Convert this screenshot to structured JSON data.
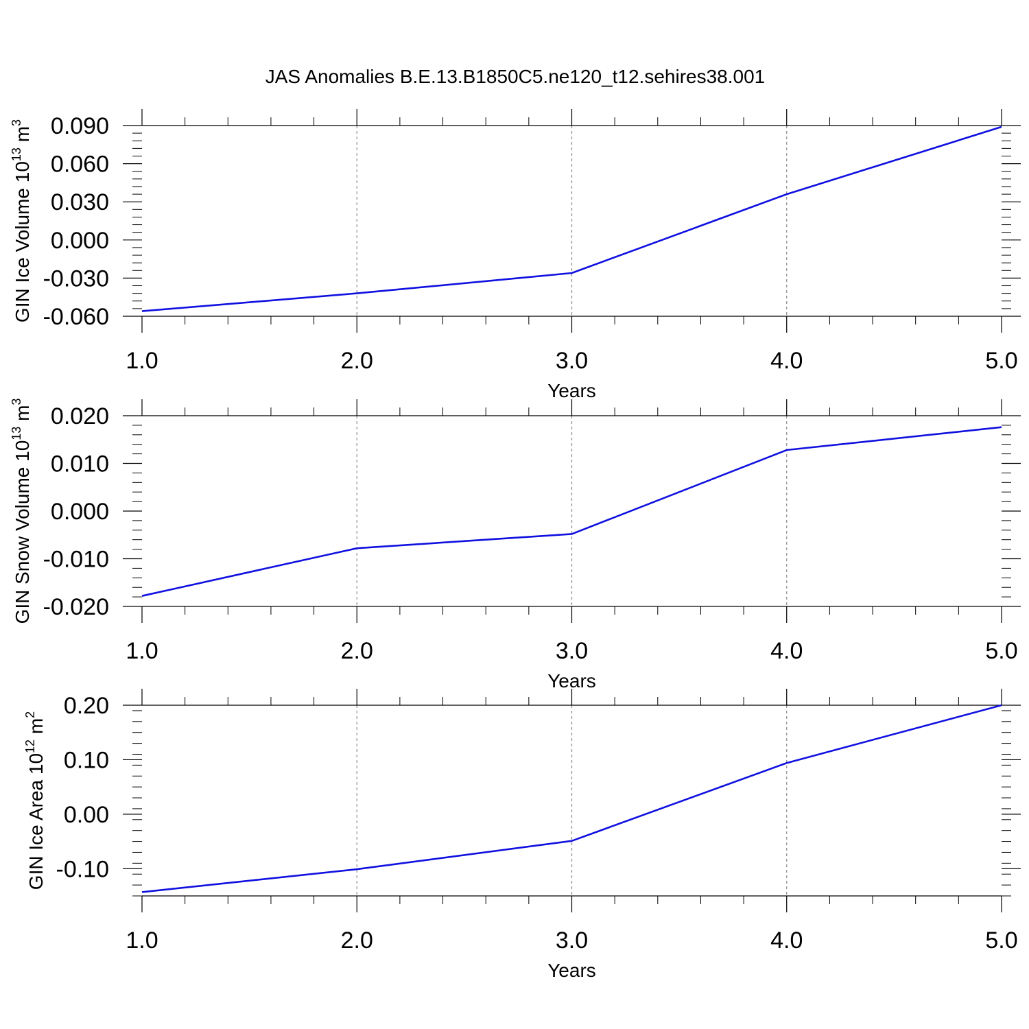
{
  "title": "JAS Anomalies B.E.13.B1850C5.ne120_t12.sehires38.001",
  "chart_data": [
    {
      "type": "line",
      "ylabel_main": "GIN Ice Volume 10",
      "ylabel_exp": "13",
      "ylabel_unit": " m",
      "ylabel_unit_exp": "3",
      "xlabel": "Years",
      "xlim": [
        1,
        5
      ],
      "ylim": [
        -0.06,
        0.09
      ],
      "yticks": [
        -0.06,
        -0.03,
        0.0,
        0.03,
        0.06,
        0.09
      ],
      "ytick_labels": [
        "-0.060",
        "-0.030",
        "0.000",
        "0.030",
        "0.060",
        "0.090"
      ],
      "xticks": [
        1,
        2,
        3,
        4,
        5
      ],
      "xtick_labels": [
        "1.0",
        "2.0",
        "3.0",
        "4.0",
        "5.0"
      ],
      "grid": "vertical-dashed",
      "series": [
        {
          "color": "#1010e0",
          "x": [
            1,
            2,
            3,
            4,
            5
          ],
          "y": [
            -0.056,
            -0.042,
            -0.026,
            0.036,
            0.089
          ]
        }
      ]
    },
    {
      "type": "line",
      "ylabel_main": "GIN Snow Volume 10",
      "ylabel_exp": "13",
      "ylabel_unit": " m",
      "ylabel_unit_exp": "3",
      "xlabel": "Years",
      "xlim": [
        1,
        5
      ],
      "ylim": [
        -0.02,
        0.02
      ],
      "yticks": [
        -0.02,
        -0.01,
        0.0,
        0.01,
        0.02
      ],
      "ytick_labels": [
        "-0.020",
        "-0.010",
        "0.000",
        "0.010",
        "0.020"
      ],
      "xticks": [
        1,
        2,
        3,
        4,
        5
      ],
      "xtick_labels": [
        "1.0",
        "2.0",
        "3.0",
        "4.0",
        "5.0"
      ],
      "grid": "vertical-dashed",
      "series": [
        {
          "color": "#1010e0",
          "x": [
            1,
            2,
            3,
            4,
            5
          ],
          "y": [
            -0.0178,
            -0.0078,
            -0.0048,
            0.0128,
            0.0176
          ]
        }
      ]
    },
    {
      "type": "line",
      "ylabel_main": "GIN Ice Area 10",
      "ylabel_exp": "12",
      "ylabel_unit": " m",
      "ylabel_unit_exp": "2",
      "xlabel": "Years",
      "xlim": [
        1,
        5
      ],
      "ylim": [
        -0.15,
        0.2
      ],
      "yticks": [
        -0.1,
        0.0,
        0.1,
        0.2
      ],
      "ytick_labels": [
        "-0.10",
        "0.00",
        "0.10",
        "0.20"
      ],
      "xticks": [
        1,
        2,
        3,
        4,
        5
      ],
      "xtick_labels": [
        "1.0",
        "2.0",
        "3.0",
        "4.0",
        "5.0"
      ],
      "grid": "vertical-dashed",
      "series": [
        {
          "color": "#1010e0",
          "x": [
            1,
            2,
            3,
            4,
            5
          ],
          "y": [
            -0.143,
            -0.101,
            -0.049,
            0.094,
            0.2
          ]
        }
      ]
    }
  ]
}
